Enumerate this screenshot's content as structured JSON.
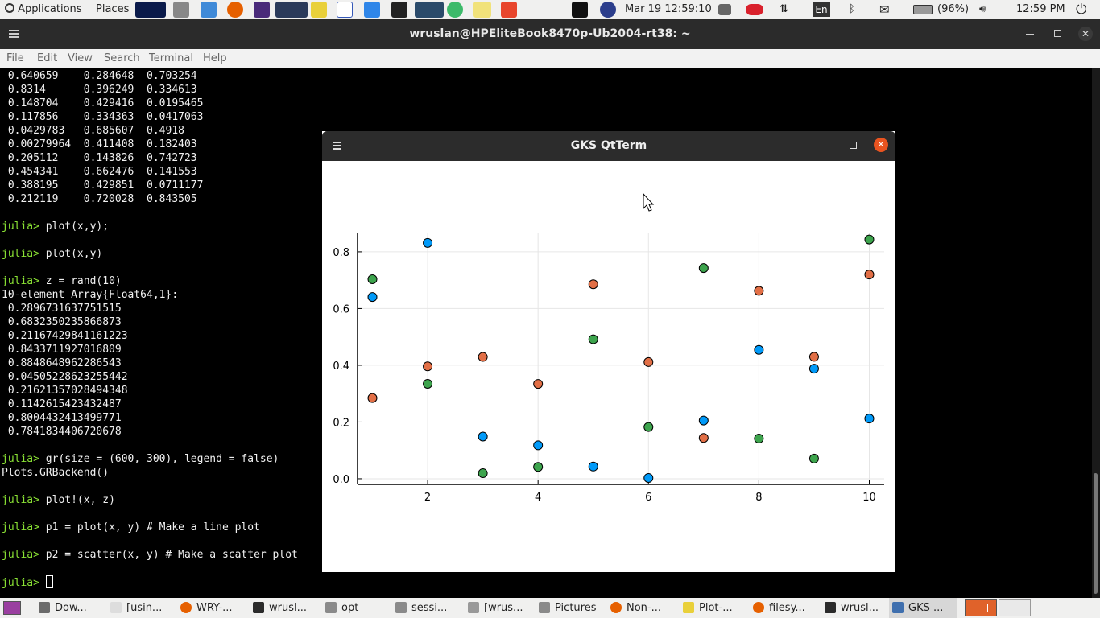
{
  "top_panel": {
    "applications": "Applications",
    "places": "Places",
    "datetime": "Mar 19  12:59:10",
    "keyboard": "En",
    "battery": "(96%)",
    "clock": "12:59 PM"
  },
  "terminal": {
    "title": "wruslan@HPEliteBook8470p-Ub2004-rt38: ~",
    "menu": [
      "File",
      "Edit",
      "View",
      "Search",
      "Terminal",
      "Help"
    ],
    "lines": [
      {
        "t": " 0.640659    0.284648  0.703254"
      },
      {
        "t": " 0.8314      0.396249  0.334613"
      },
      {
        "t": " 0.148704    0.429416  0.0195465"
      },
      {
        "t": " 0.117856    0.334363  0.0417063"
      },
      {
        "t": " 0.0429783   0.685607  0.4918"
      },
      {
        "t": " 0.00279964  0.411408  0.182403"
      },
      {
        "t": " 0.205112    0.143826  0.742723"
      },
      {
        "t": " 0.454341    0.662476  0.141553"
      },
      {
        "t": " 0.388195    0.429851  0.0711177"
      },
      {
        "t": " 0.212119    0.720028  0.843505"
      },
      {
        "t": ""
      },
      {
        "p": "julia> ",
        "t": "plot(x,y);"
      },
      {
        "t": ""
      },
      {
        "p": "julia> ",
        "t": "plot(x,y)"
      },
      {
        "t": ""
      },
      {
        "p": "julia> ",
        "t": "z = rand(10)"
      },
      {
        "t": "10-element Array{Float64,1}:"
      },
      {
        "t": " 0.2896731637751515"
      },
      {
        "t": " 0.6832350235866873"
      },
      {
        "t": " 0.21167429841161223"
      },
      {
        "t": " 0.8433711927016809"
      },
      {
        "t": " 0.8848648962286543"
      },
      {
        "t": " 0.04505228623255442"
      },
      {
        "t": " 0.21621357028494348"
      },
      {
        "t": " 0.1142615423432487"
      },
      {
        "t": " 0.8004432413499771"
      },
      {
        "t": " 0.7841834406720678"
      },
      {
        "t": ""
      },
      {
        "p": "julia> ",
        "t": "gr(size = (600, 300), legend = false)"
      },
      {
        "t": "Plots.GRBackend()"
      },
      {
        "t": ""
      },
      {
        "p": "julia> ",
        "t": "plot!(x, z)"
      },
      {
        "t": ""
      },
      {
        "p": "julia> ",
        "t": "p1 = plot(x, y) # Make a line plot"
      },
      {
        "t": ""
      },
      {
        "p": "julia> ",
        "t": "p2 = scatter(x, y) # Make a scatter plot"
      },
      {
        "t": ""
      },
      {
        "p": "julia> ",
        "t": "",
        "cursor": true
      }
    ]
  },
  "gks_window": {
    "title": "GKS QtTerm"
  },
  "chart_data": {
    "type": "scatter",
    "x": [
      1,
      2,
      3,
      4,
      5,
      6,
      7,
      8,
      9,
      10
    ],
    "series": [
      {
        "color": "#009af9",
        "values": [
          0.640659,
          0.8314,
          0.148704,
          0.117856,
          0.0429783,
          0.00279964,
          0.205112,
          0.454341,
          0.388195,
          0.212119
        ]
      },
      {
        "color": "#e26f46",
        "values": [
          0.284648,
          0.396249,
          0.429416,
          0.334363,
          0.685607,
          0.411408,
          0.143826,
          0.662476,
          0.429851,
          0.720028
        ]
      },
      {
        "color": "#3da44d",
        "values": [
          0.703254,
          0.334613,
          0.0195465,
          0.0417063,
          0.4918,
          0.182403,
          0.742723,
          0.141553,
          0.0711177,
          0.843505
        ]
      }
    ],
    "xticks": [
      2,
      4,
      6,
      8,
      10
    ],
    "yticks": [
      0.0,
      0.2,
      0.4,
      0.6,
      0.8
    ],
    "xtick_labels": [
      "2",
      "4",
      "6",
      "8",
      "10"
    ],
    "ytick_labels": [
      "0.0",
      "0.2",
      "0.4",
      "0.6",
      "0.8"
    ],
    "xlim": [
      0.73,
      10.27
    ],
    "ylim": [
      -0.02,
      0.865
    ],
    "grid": true,
    "legend": false
  },
  "taskbar": {
    "items": [
      {
        "label": "Dow...",
        "icon": "files-icon"
      },
      {
        "label": "[usin...",
        "icon": "document-icon"
      },
      {
        "label": "WRY-...",
        "icon": "firefox-icon"
      },
      {
        "label": "wrusl...",
        "icon": "terminal-icon"
      },
      {
        "label": "opt",
        "icon": "folder-icon"
      },
      {
        "label": "sessi...",
        "icon": "folder-icon"
      },
      {
        "label": "[wrus...",
        "icon": "screenshot-icon"
      },
      {
        "label": "Pictures",
        "icon": "folder-icon"
      },
      {
        "label": "Non-...",
        "icon": "firefox-icon"
      },
      {
        "label": "Plot-...",
        "icon": "editor-icon"
      },
      {
        "label": "filesy...",
        "icon": "firefox-icon"
      },
      {
        "label": "wrusl...",
        "icon": "terminal-icon"
      },
      {
        "label": "GKS ...",
        "icon": "gks-icon",
        "active": true
      }
    ]
  }
}
